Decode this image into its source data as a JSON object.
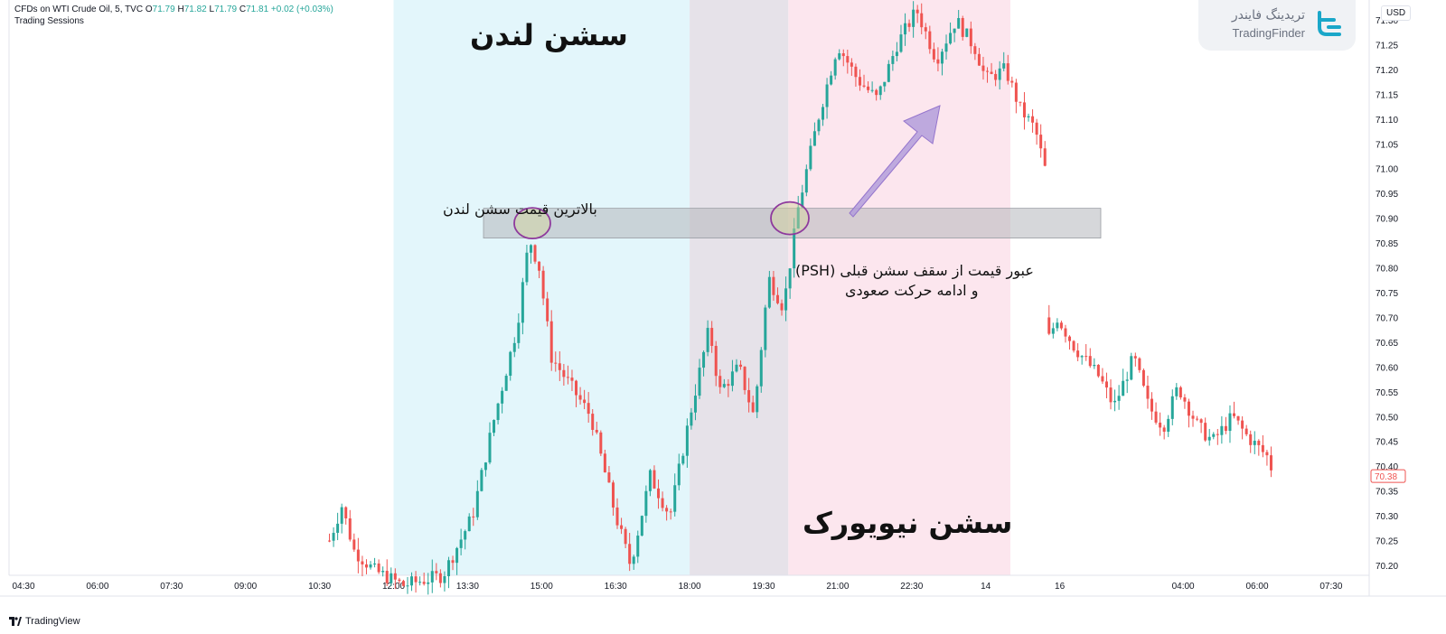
{
  "header": {
    "symbol": "CFDs on WTI Crude Oil, 5, TVC",
    "o_label": "O",
    "o_value": "71.79",
    "h_label": "H",
    "h_value": "71.82",
    "l_label": "L",
    "l_value": "71.79",
    "c_label": "C",
    "c_value": "71.81",
    "change": "+0.02 (+0.03%)",
    "indicator": "Trading Sessions"
  },
  "watermark": {
    "fa": "تریدینگ فایندر",
    "en": "TradingFinder"
  },
  "currency": "USD",
  "footer": {
    "brand": "TradingView"
  },
  "annotations": {
    "london_session": "سشن لندن",
    "newyork_session": "سشن نیویورک",
    "london_high": "بالاترین قیمت سشن لندن",
    "breakout_line1": "عبور قیمت از سقف سشن قبلی (PSH)",
    "breakout_line2": "و ادامه حرکت صعودی"
  },
  "colors": {
    "up": "#26a69a",
    "down": "#ef5350",
    "london_bg": "#e3f6fb",
    "overlap_bg": "#e6e2e9",
    "newyork_bg": "#fce6ee",
    "psh_zone": "#b4b7bb",
    "arrow": "#b39ddb",
    "circle": "#8e3a9d"
  },
  "chart_data": {
    "type": "candlestick",
    "title": "CFDs on WTI Crude Oil, 5, TVC",
    "y_ticks": [
      "71.30",
      "71.25",
      "71.20",
      "71.15",
      "71.10",
      "71.05",
      "71.00",
      "70.95",
      "70.90",
      "70.85",
      "70.80",
      "70.75",
      "70.70",
      "70.65",
      "70.60",
      "70.55",
      "70.50",
      "70.45",
      "70.40",
      "70.35",
      "70.30",
      "70.25",
      "70.20"
    ],
    "ylim": [
      70.18,
      71.34
    ],
    "x_ticks": [
      "04:30",
      "06:00",
      "07:30",
      "09:00",
      "10:30",
      "12:00",
      "13:30",
      "15:00",
      "16:30",
      "18:00",
      "19:30",
      "21:00",
      "22:30",
      "14",
      "16",
      "04:00",
      "06:00",
      "07:30"
    ],
    "last_price": "70.38",
    "sessions": [
      {
        "name": "London",
        "start": "12:00",
        "end": "18:00"
      },
      {
        "name": "Overlap",
        "start": "18:00",
        "end": "20:00"
      },
      {
        "name": "New York",
        "start": "20:00",
        "end": "00:30"
      }
    ],
    "psh_zone": {
      "top": 70.92,
      "bottom": 70.86
    },
    "london_high": 70.88,
    "path": [
      [
        10.7,
        70.25
      ],
      [
        10.95,
        70.32
      ],
      [
        11.2,
        70.23
      ],
      [
        11.6,
        70.19
      ],
      [
        12.2,
        70.16
      ],
      [
        13.0,
        70.18
      ],
      [
        13.6,
        70.3
      ],
      [
        14.0,
        70.48
      ],
      [
        14.5,
        70.68
      ],
      [
        14.75,
        70.86
      ],
      [
        14.95,
        70.8
      ],
      [
        15.2,
        70.62
      ],
      [
        15.6,
        70.56
      ],
      [
        16.0,
        70.5
      ],
      [
        16.5,
        70.3
      ],
      [
        16.8,
        70.2
      ],
      [
        17.2,
        70.38
      ],
      [
        17.6,
        70.3
      ],
      [
        18.0,
        70.5
      ],
      [
        18.4,
        70.68
      ],
      [
        18.6,
        70.55
      ],
      [
        19.0,
        70.6
      ],
      [
        19.3,
        70.5
      ],
      [
        19.6,
        70.78
      ],
      [
        19.9,
        70.72
      ],
      [
        20.2,
        70.92
      ],
      [
        20.6,
        71.1
      ],
      [
        21.0,
        71.25
      ],
      [
        21.4,
        71.18
      ],
      [
        21.8,
        71.14
      ],
      [
        22.2,
        71.25
      ],
      [
        22.6,
        71.32
      ],
      [
        23.0,
        71.22
      ],
      [
        23.4,
        71.3
      ],
      [
        23.8,
        71.24
      ],
      [
        24.0,
        71.18
      ],
      [
        24.4,
        71.2
      ],
      [
        24.7,
        71.12
      ],
      [
        25.0,
        71.08
      ],
      [
        25.2,
        71.0
      ],
      [
        25.25,
        70.65
      ],
      [
        25.45,
        70.7
      ],
      [
        25.8,
        70.64
      ],
      [
        26.3,
        70.58
      ],
      [
        26.6,
        70.52
      ],
      [
        27.0,
        70.62
      ],
      [
        27.3,
        70.52
      ],
      [
        27.6,
        70.48
      ],
      [
        27.9,
        70.56
      ],
      [
        28.3,
        70.48
      ],
      [
        28.6,
        70.45
      ],
      [
        29.0,
        70.5
      ],
      [
        29.3,
        70.46
      ],
      [
        29.7,
        70.42
      ],
      [
        29.85,
        70.38
      ]
    ]
  }
}
